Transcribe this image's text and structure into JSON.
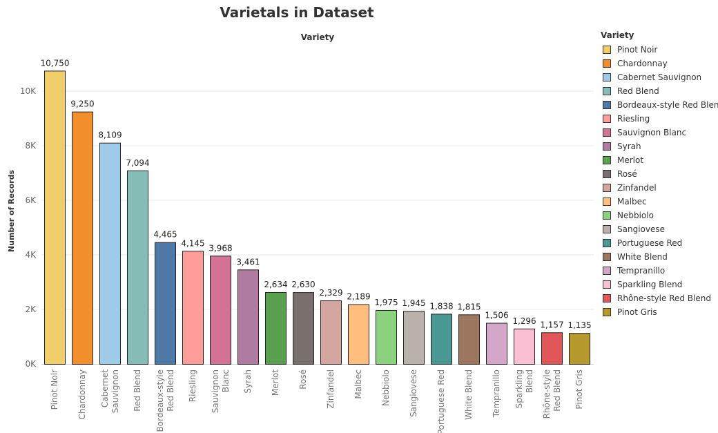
{
  "chart_data": {
    "type": "bar",
    "title": "Varietals in Dataset",
    "header": "Variety",
    "xlabel": "",
    "ylabel": "Number of Records",
    "ylim": [
      0,
      11000
    ],
    "yticks": [
      0,
      2000,
      4000,
      6000,
      8000,
      10000
    ],
    "ytick_labels": [
      "0K",
      "2K",
      "4K",
      "6K",
      "8K",
      "10K"
    ],
    "grid": true,
    "legend_position": "right",
    "legend_title": "Variety",
    "categories": [
      "Pinot Noir",
      "Chardonnay",
      "Cabernet Sauvignon",
      "Red Blend",
      "Bordeaux-style Red Blend",
      "Riesling",
      "Sauvignon Blanc",
      "Syrah",
      "Merlot",
      "Rosé",
      "Zinfandel",
      "Malbec",
      "Nebbiolo",
      "Sangiovese",
      "Portuguese Red",
      "White Blend",
      "Tempranillo",
      "Sparkling Blend",
      "Rhône-style Red Blend",
      "Pinot Gris"
    ],
    "values": [
      10750,
      9250,
      8109,
      7094,
      4465,
      4145,
      3968,
      3461,
      2634,
      2630,
      2329,
      2189,
      1975,
      1945,
      1838,
      1815,
      1506,
      1296,
      1157,
      1135
    ],
    "value_labels": [
      "10,750",
      "9,250",
      "8,109",
      "7,094",
      "4,465",
      "4,145",
      "3,968",
      "3,461",
      "2,634",
      "2,630",
      "2,329",
      "2,189",
      "1,975",
      "1,945",
      "1,838",
      "1,815",
      "1,506",
      "1,296",
      "1,157",
      "1,135"
    ],
    "colors": [
      "#f0cf6a",
      "#f28e2b",
      "#a0cbe8",
      "#86bcb6",
      "#4e79a7",
      "#ff9d9a",
      "#d37295",
      "#b07aa1",
      "#59a14f",
      "#79706e",
      "#d4a6a0",
      "#ffbe7d",
      "#8cd17d",
      "#bab0ac",
      "#499894",
      "#9d7660",
      "#d4a6c8",
      "#fabfd2",
      "#e15759",
      "#b6992d"
    ]
  }
}
